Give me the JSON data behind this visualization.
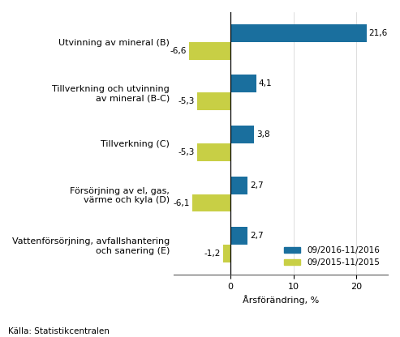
{
  "categories": [
    "Utvinning av mineral (B)",
    "Tillverkning och utvinning\nav mineral (B-C)",
    "Tillverkning (C)",
    "Försörjning av el, gas,\nvärme och kyla (D)",
    "Vattenförsörjning, avfallshantering\noch sanering (E)"
  ],
  "values_2016": [
    21.6,
    4.1,
    3.8,
    2.7,
    2.7
  ],
  "values_2015": [
    -6.6,
    -5.3,
    -5.3,
    -6.1,
    -1.2
  ],
  "color_2016": "#1a6f9e",
  "color_2015": "#c8cf45",
  "xlabel": "Årsförändring, %",
  "legend_2016": "09/2016-11/2016",
  "legend_2015": "09/2015-11/2015",
  "source": "Källa: Statistikcentralen",
  "xlim": [
    -9,
    25
  ],
  "xticks": [
    0,
    10,
    20
  ],
  "xticklabels": [
    "0",
    "10",
    "20"
  ],
  "bar_height": 0.35,
  "background_color": "#ffffff"
}
